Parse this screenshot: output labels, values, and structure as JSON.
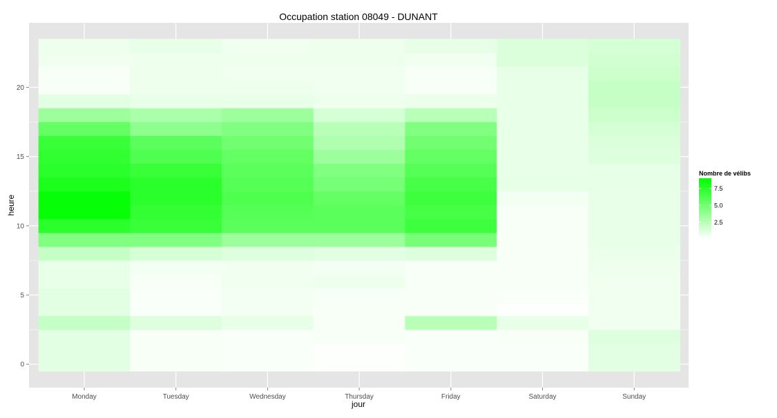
{
  "chart_data": {
    "type": "heatmap",
    "title": "Occupation station 08049 - DUNANT",
    "xlabel": "jour",
    "ylabel": "heure",
    "categories": [
      "Monday",
      "Tuesday",
      "Wednesday",
      "Thursday",
      "Friday",
      "Saturday",
      "Sunday"
    ],
    "hours": [
      0,
      1,
      2,
      3,
      4,
      5,
      6,
      7,
      8,
      9,
      10,
      11,
      12,
      13,
      14,
      15,
      16,
      17,
      18,
      19,
      20,
      21,
      22,
      23
    ],
    "y_ticks": [
      0,
      5,
      10,
      15,
      20
    ],
    "ylim": [
      -0.5,
      23.5
    ],
    "grid": true,
    "legend": {
      "title": "Nombre de vélibs",
      "position": "right",
      "ticks": [
        2.5,
        5.0,
        7.5
      ],
      "tick_labels": [
        "2.5",
        "5.0",
        "7.5"
      ],
      "range": [
        0.0,
        9.0
      ],
      "low_color": "#ffffff",
      "high_color": "#00ff00"
    },
    "colors": {
      "panel_background": "#e5e5e5",
      "grid": "#ffffff",
      "low": "#ffffff",
      "high": "#00ff00",
      "axis_text": "#4d4d4d"
    },
    "values": [
      [
        1.0,
        0.3,
        0.2,
        0.1,
        0.2,
        0.2,
        1.0
      ],
      [
        1.0,
        0.3,
        0.2,
        0.1,
        0.2,
        0.2,
        1.0
      ],
      [
        1.0,
        0.3,
        0.2,
        0.3,
        0.2,
        0.3,
        1.2
      ],
      [
        2.0,
        1.2,
        0.8,
        0.3,
        2.5,
        0.8,
        0.5
      ],
      [
        1.0,
        0.2,
        0.4,
        0.3,
        0.3,
        0.1,
        0.5
      ],
      [
        1.0,
        0.2,
        0.4,
        0.3,
        0.3,
        0.2,
        0.5
      ],
      [
        0.8,
        0.3,
        0.5,
        0.6,
        0.3,
        0.3,
        0.5
      ],
      [
        0.8,
        0.4,
        0.5,
        0.4,
        0.3,
        0.3,
        0.6
      ],
      [
        2.0,
        1.5,
        1.2,
        1.0,
        1.2,
        0.3,
        0.7
      ],
      [
        4.5,
        4.5,
        3.5,
        3.5,
        4.8,
        0.3,
        0.8
      ],
      [
        7.5,
        7.0,
        5.8,
        5.8,
        6.8,
        0.3,
        0.8
      ],
      [
        8.8,
        7.2,
        6.0,
        5.8,
        6.5,
        0.3,
        0.8
      ],
      [
        8.8,
        7.5,
        6.2,
        5.5,
        6.8,
        0.4,
        0.8
      ],
      [
        8.0,
        7.5,
        6.0,
        4.8,
        6.5,
        0.9,
        0.9
      ],
      [
        7.5,
        7.0,
        5.8,
        4.5,
        6.0,
        0.8,
        0.9
      ],
      [
        7.3,
        6.2,
        5.5,
        3.5,
        5.5,
        0.8,
        1.2
      ],
      [
        7.0,
        5.8,
        5.0,
        2.8,
        5.0,
        0.8,
        1.3
      ],
      [
        5.5,
        4.0,
        4.5,
        2.5,
        4.5,
        0.8,
        1.5
      ],
      [
        3.5,
        3.0,
        3.5,
        1.5,
        2.5,
        0.8,
        1.8
      ],
      [
        1.0,
        0.8,
        0.8,
        0.6,
        0.7,
        0.8,
        2.0
      ],
      [
        0.3,
        0.6,
        0.6,
        0.5,
        0.3,
        0.8,
        2.0
      ],
      [
        0.3,
        0.6,
        0.5,
        0.5,
        0.3,
        0.9,
        1.8
      ],
      [
        0.5,
        0.6,
        0.6,
        0.6,
        0.5,
        1.3,
        1.6
      ],
      [
        0.6,
        0.8,
        0.5,
        0.6,
        0.9,
        1.3,
        1.5
      ]
    ]
  }
}
